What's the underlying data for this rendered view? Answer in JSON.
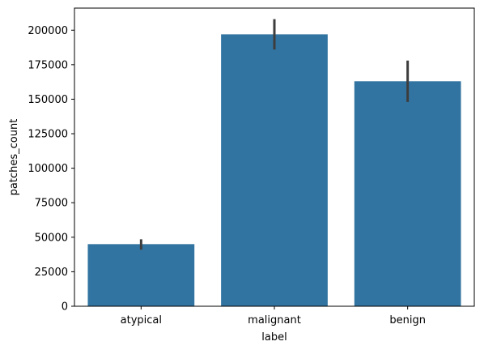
{
  "chart_data": {
    "type": "bar",
    "title": "",
    "xlabel": "label",
    "ylabel": "patches_count",
    "categories": [
      "atypical",
      "malignant",
      "benign"
    ],
    "values": [
      45000,
      197000,
      163000
    ],
    "error_bars": [
      {
        "low": 41000,
        "high": 48500
      },
      {
        "low": 186000,
        "high": 208000
      },
      {
        "low": 148000,
        "high": 178000
      }
    ],
    "ylim": [
      0,
      216000
    ],
    "yticks": [
      0,
      25000,
      50000,
      75000,
      100000,
      125000,
      150000,
      175000,
      200000
    ],
    "ytick_labels": [
      "0",
      "25000",
      "50000",
      "75000",
      "100000",
      "125000",
      "150000",
      "175000",
      "200000"
    ],
    "bar_color": "#3274a1",
    "errorbar_color": "#3d3d3d",
    "grid": false,
    "legend": "none"
  }
}
